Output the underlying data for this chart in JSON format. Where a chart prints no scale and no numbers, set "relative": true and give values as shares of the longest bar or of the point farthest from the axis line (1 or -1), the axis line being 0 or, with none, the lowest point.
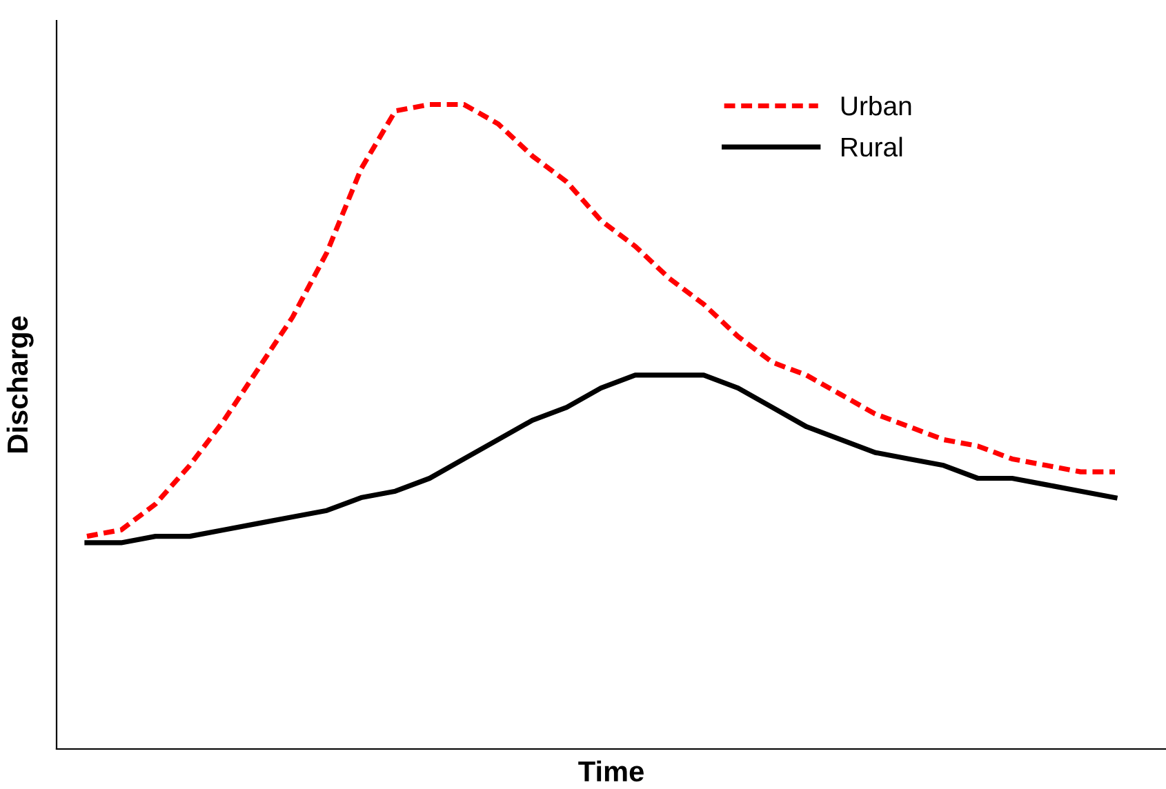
{
  "chart_data": {
    "type": "line",
    "relative": true,
    "xlabel": "Time",
    "ylabel": "Discharge",
    "legend": "top right",
    "tick_labels": false,
    "categories": [
      null,
      null,
      null,
      null,
      null,
      null,
      null,
      null,
      null,
      null,
      null,
      null,
      null,
      null,
      null,
      null,
      null,
      null,
      null,
      null,
      null,
      null,
      null,
      null,
      null,
      null,
      null,
      null,
      null,
      null,
      null
    ],
    "series": [
      {
        "name": "Urban",
        "color": "#ff0000",
        "line_style": "dashed",
        "values": [
          0.33,
          0.34,
          0.38,
          0.44,
          0.51,
          0.59,
          0.67,
          0.77,
          0.9,
          0.99,
          1.0,
          1.0,
          0.97,
          0.92,
          0.88,
          0.82,
          0.78,
          0.73,
          0.69,
          0.64,
          0.6,
          0.58,
          0.55,
          0.52,
          0.5,
          0.48,
          0.47,
          0.45,
          0.44,
          0.43,
          0.43
        ]
      },
      {
        "name": "Rural",
        "color": "#000000",
        "line_style": "solid",
        "values": [
          0.32,
          0.32,
          0.33,
          0.33,
          0.34,
          0.35,
          0.36,
          0.37,
          0.39,
          0.4,
          0.42,
          0.45,
          0.48,
          0.51,
          0.53,
          0.56,
          0.58,
          0.58,
          0.58,
          0.56,
          0.53,
          0.5,
          0.48,
          0.46,
          0.45,
          0.44,
          0.42,
          0.42,
          0.41,
          0.4,
          0.39
        ]
      }
    ]
  }
}
